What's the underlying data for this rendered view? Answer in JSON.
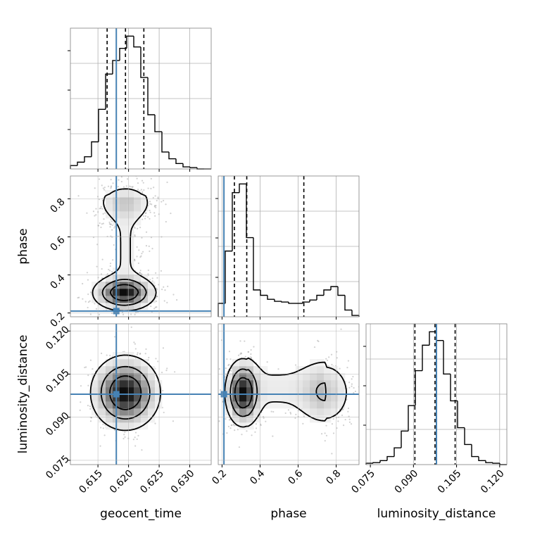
{
  "chart_data": {
    "type": "corner",
    "parameters": [
      "geocent_time",
      "phase",
      "luminosity_distance"
    ],
    "truths": {
      "geocent_time": 0.618,
      "phase": 0.21,
      "luminosity_distance": 0.098
    },
    "ranges": {
      "geocent_time": [
        0.6105,
        0.6335
      ],
      "phase": [
        0.18,
        0.92
      ],
      "luminosity_distance": [
        0.0735,
        0.1225
      ]
    },
    "ticks": {
      "geocent_time": {
        "values": [
          0.615,
          0.62,
          0.625,
          0.63
        ],
        "labels": [
          "0.615",
          "0.620",
          "0.625",
          "0.630"
        ]
      },
      "phase": {
        "values": [
          0.2,
          0.4,
          0.6,
          0.8
        ],
        "labels": [
          "0.2",
          "0.4",
          "0.6",
          "0.8"
        ]
      },
      "luminosity_distance": {
        "values": [
          0.075,
          0.09,
          0.105,
          0.12
        ],
        "labels": [
          "0.075",
          "0.090",
          "0.105",
          "0.120"
        ]
      }
    },
    "quantiles": {
      "geocent_time": [
        0.6165,
        0.6195,
        0.6225
      ],
      "phase": [
        0.265,
        0.33,
        0.63
      ],
      "luminosity_distance": [
        0.0905,
        0.0975,
        0.1045
      ]
    },
    "histograms": {
      "geocent_time": {
        "edges": [
          0.6105,
          0.61165,
          0.6128,
          0.61395,
          0.6151,
          0.61625,
          0.6174,
          0.61855,
          0.6197,
          0.62085,
          0.622,
          0.62315,
          0.6243,
          0.62545,
          0.6266,
          0.62775,
          0.6289,
          0.63005,
          0.6312,
          0.63235,
          0.6335
        ],
        "counts": [
          5,
          10,
          18,
          40,
          88,
          140,
          160,
          178,
          196,
          180,
          135,
          80,
          55,
          25,
          15,
          8,
          3,
          2,
          0,
          0
        ]
      },
      "phase": {
        "edges": [
          0.18,
          0.217,
          0.254,
          0.291,
          0.328,
          0.365,
          0.402,
          0.439,
          0.476,
          0.513,
          0.55,
          0.587,
          0.624,
          0.661,
          0.698,
          0.735,
          0.772,
          0.809,
          0.846,
          0.883,
          0.92
        ],
        "counts": [
          20,
          98,
          185,
          198,
          118,
          40,
          32,
          26,
          23,
          22,
          20,
          20,
          22,
          25,
          32,
          40,
          45,
          32,
          10,
          2
        ]
      },
      "luminosity_distance": {
        "edges": [
          0.0735,
          0.07595,
          0.0784,
          0.08085,
          0.0833,
          0.08575,
          0.0882,
          0.09065,
          0.0931,
          0.09555,
          0.098,
          0.10045,
          0.1029,
          0.10535,
          0.1078,
          0.11025,
          0.1127,
          0.11515,
          0.1176,
          0.12005,
          0.1225
        ],
        "counts": [
          2,
          3,
          6,
          12,
          25,
          50,
          88,
          140,
          178,
          198,
          185,
          135,
          95,
          55,
          30,
          12,
          6,
          3,
          2,
          0
        ]
      }
    },
    "grid": true,
    "truth_color": "#4682b4"
  }
}
